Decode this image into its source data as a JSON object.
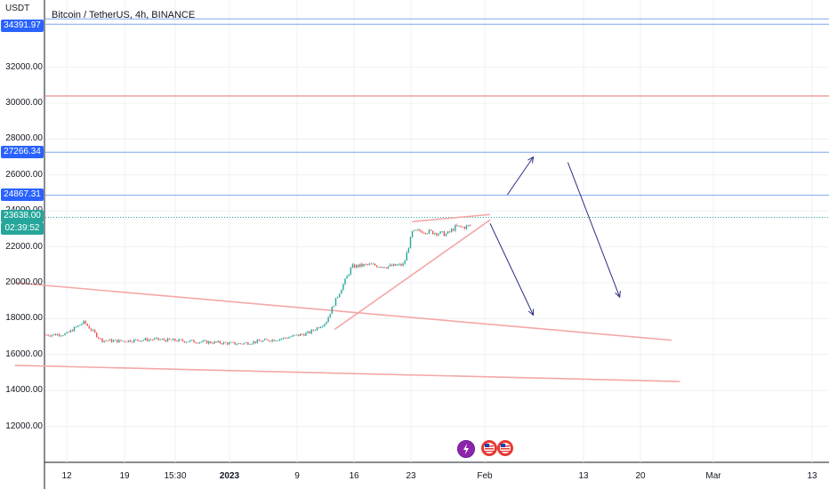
{
  "header": {
    "axis_currency": "USDT",
    "symbol_title": "Bitcoin / TetherUS, 4h, BINANCE"
  },
  "colors": {
    "candle_up": "#26a69a",
    "candle_down": "#ef5350",
    "red_line": "#f4a7a7",
    "blue_line": "#7fa4ef",
    "arrow": "#2b2f84",
    "label_blue": "#2962ff",
    "label_teal": "#26a69a"
  },
  "price_labels": {
    "top_cut": "34391.97",
    "level_1": "27266.34",
    "level_2": "24867.31",
    "current_price": "23638.00",
    "countdown": "02:39:52"
  },
  "event_icons": [
    "lightning-icon",
    "us-flag-icon",
    "us-flag-icon"
  ],
  "chart_data": {
    "type": "candlestick",
    "title": "Bitcoin / TetherUS, 4h, BINANCE",
    "xlabel": "",
    "ylabel": "",
    "unit": "USDT",
    "ylim": [
      10500,
      35000
    ],
    "y_ticks": [
      "12000.00",
      "14000.00",
      "16000.00",
      "18000.00",
      "20000.00",
      "22000.00",
      "24000.00",
      "26000.00",
      "28000.00",
      "30000.00",
      "32000.00"
    ],
    "x_ticks": [
      "12",
      "19",
      "15:30",
      "2023",
      "9",
      "16",
      "23",
      "Feb",
      "13",
      "20",
      "Mar",
      "13"
    ],
    "grid": true,
    "price_series_dates": [
      "2022-12-10",
      "2022-12-12",
      "2022-12-13",
      "2022-12-14",
      "2022-12-15",
      "2022-12-16",
      "2022-12-18",
      "2022-12-22",
      "2022-12-28",
      "2023-01-01",
      "2023-01-06",
      "2023-01-09",
      "2023-01-11",
      "2023-01-12",
      "2023-01-13",
      "2023-01-14",
      "2023-01-16",
      "2023-01-18",
      "2023-01-20",
      "2023-01-21",
      "2023-01-22",
      "2023-01-25",
      "2023-01-26",
      "2023-01-27",
      "2023-01-29",
      "2023-01-30"
    ],
    "price_series_close": [
      17100,
      17150,
      17500,
      17800,
      17300,
      16800,
      16750,
      16850,
      16700,
      16600,
      16900,
      17200,
      17800,
      18900,
      19900,
      20900,
      21000,
      20900,
      21000,
      22800,
      22900,
      22700,
      23100,
      23100,
      23300,
      23638
    ],
    "horizontal_levels": [
      {
        "price": 34391.97,
        "color": "blue"
      },
      {
        "price": 30400,
        "color": "red"
      },
      {
        "price": 27266.34,
        "color": "blue"
      },
      {
        "price": 24867.31,
        "color": "blue"
      },
      {
        "price": 23638.0,
        "color": "teal",
        "style": "dotted"
      }
    ],
    "trend_lines": [
      {
        "from": [
          "2022-12-06",
          20000
        ],
        "to": [
          "2023-02-20",
          16800
        ],
        "color": "red"
      },
      {
        "from": [
          "2022-12-06",
          15400
        ],
        "to": [
          "2023-02-21",
          14500
        ],
        "color": "red"
      },
      {
        "from": [
          "2023-01-12",
          17400
        ],
        "to": [
          "2023-01-30",
          23500
        ],
        "color": "red"
      },
      {
        "from": [
          "2023-01-21",
          23400
        ],
        "to": [
          "2023-01-30",
          23800
        ],
        "color": "red"
      }
    ],
    "arrows": [
      {
        "from": [
          "2023-02-01",
          24900
        ],
        "to": [
          "2023-02-04",
          27000
        ]
      },
      {
        "from": [
          "2023-01-30",
          23300
        ],
        "to": [
          "2023-02-04",
          18200
        ]
      },
      {
        "from": [
          "2023-02-08",
          26700
        ],
        "to": [
          "2023-02-14",
          19200
        ]
      }
    ]
  }
}
